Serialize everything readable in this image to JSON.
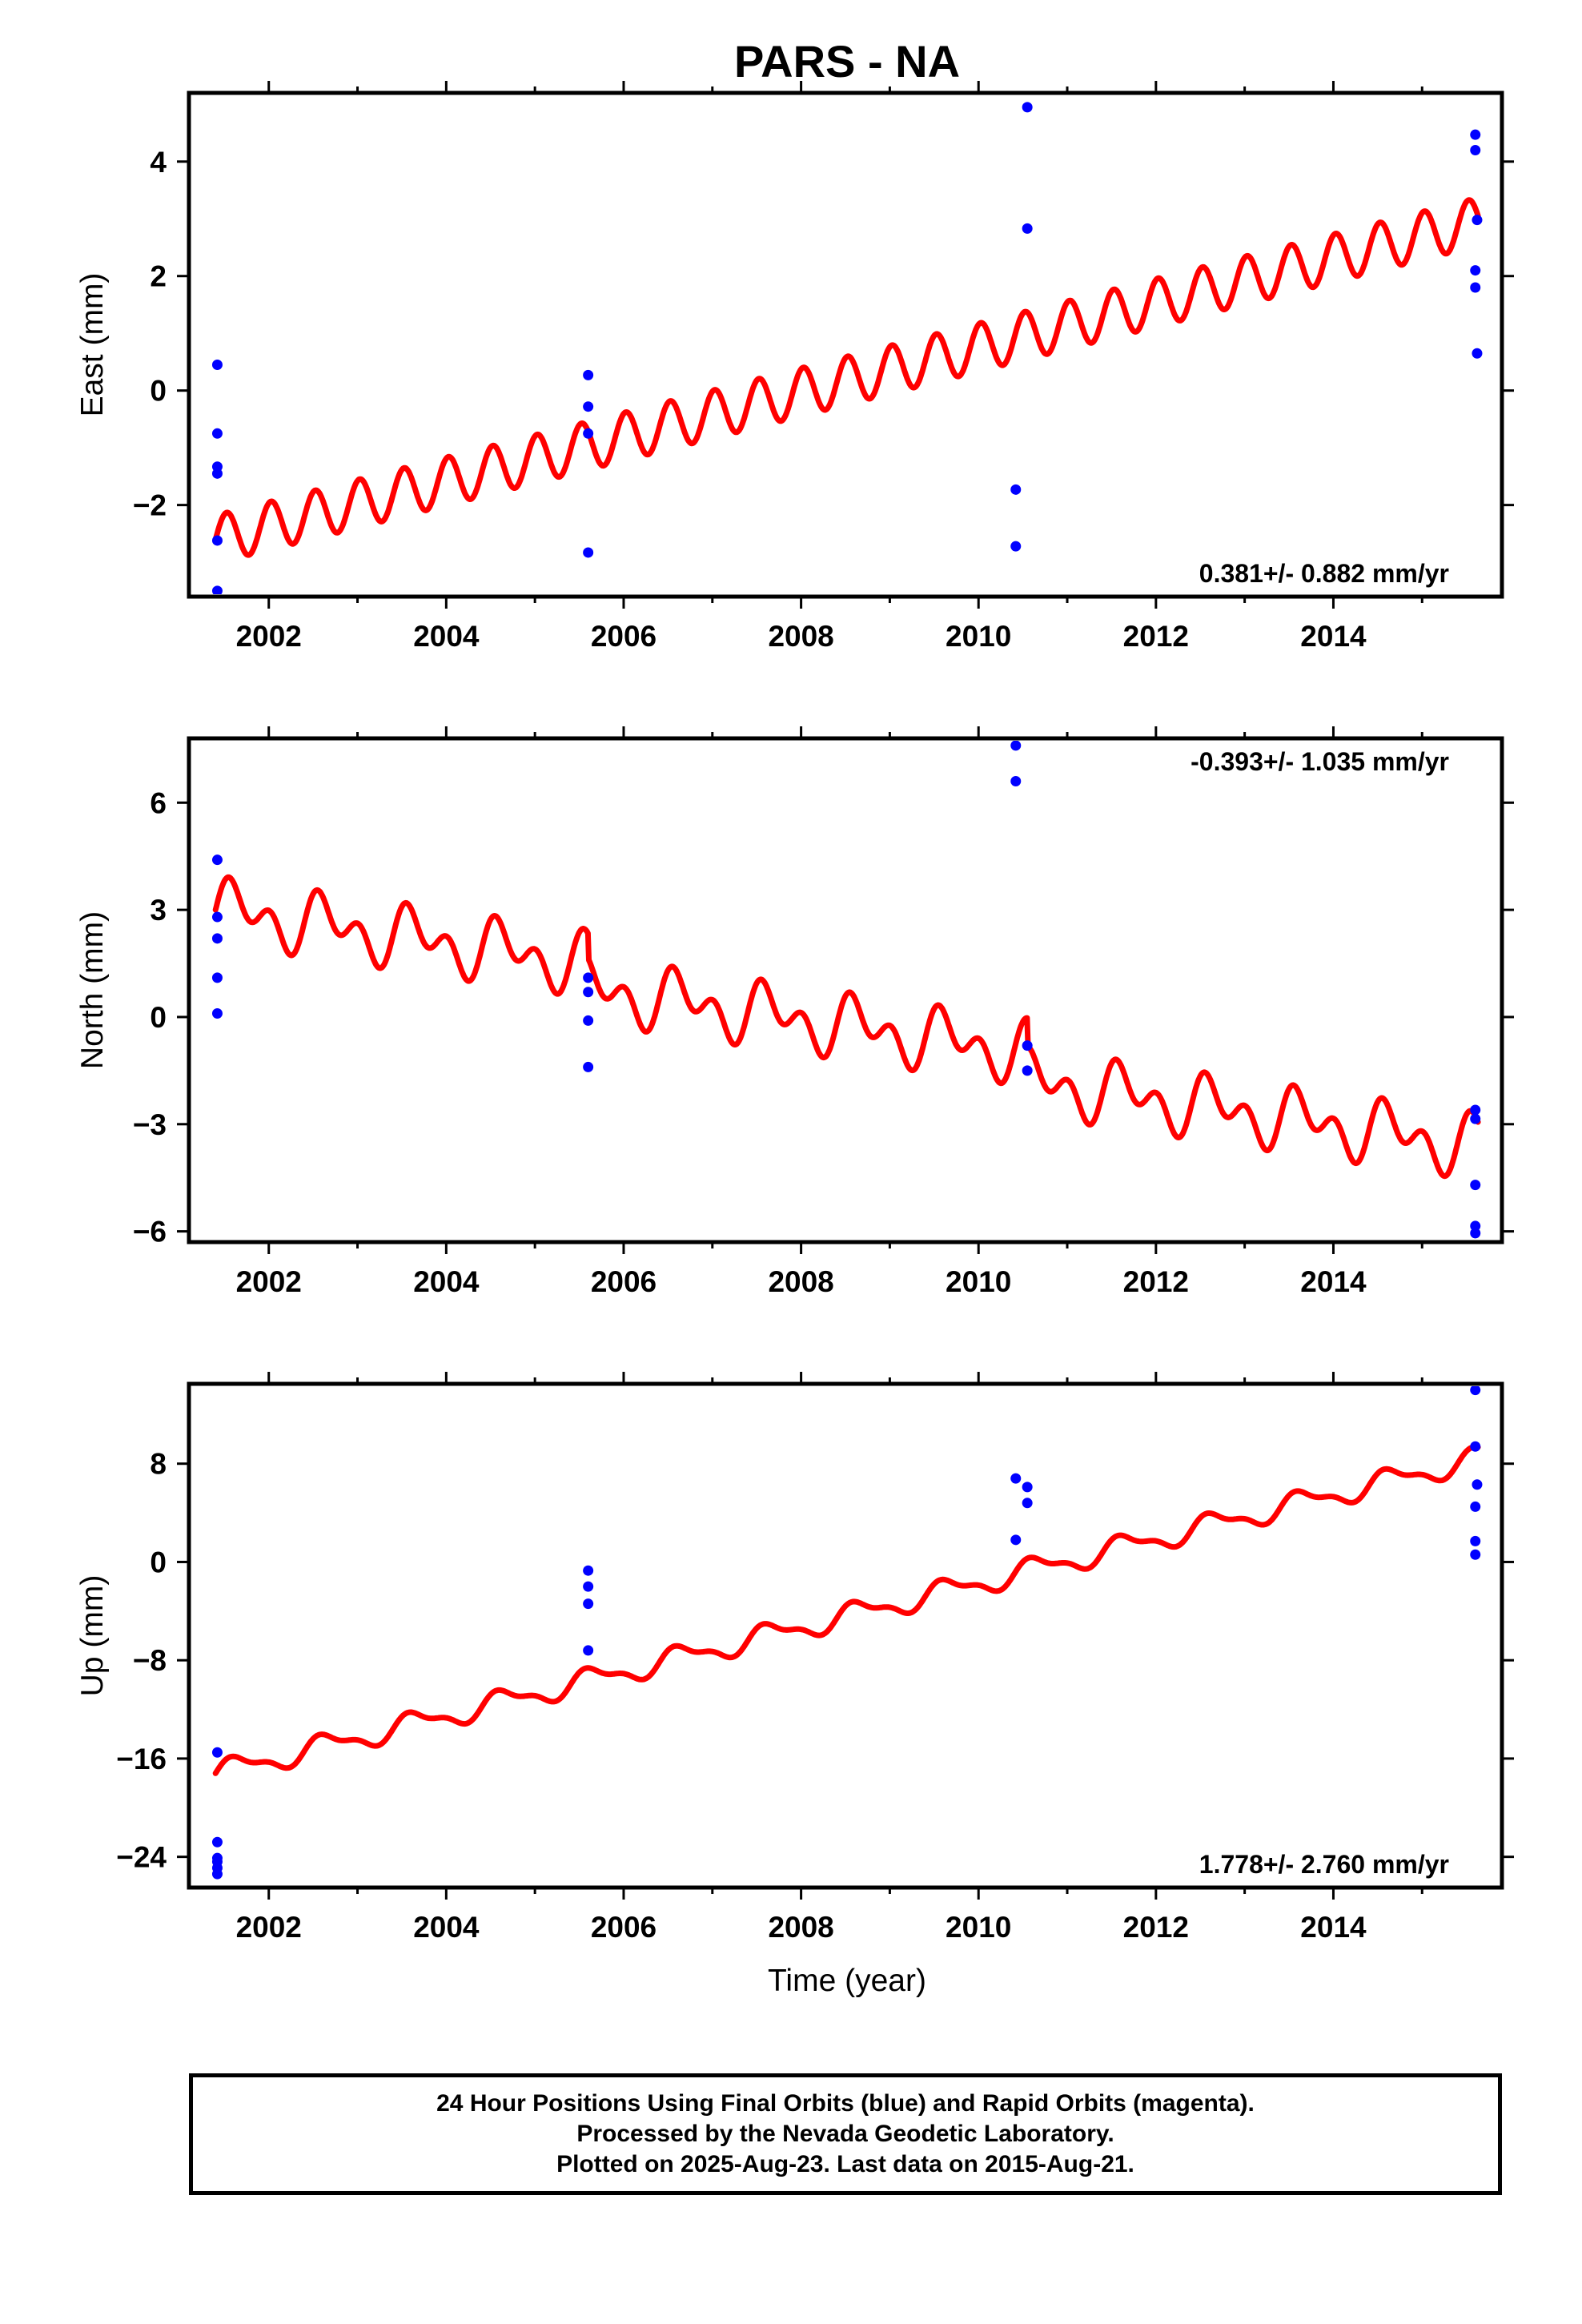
{
  "title": "PARS - NA",
  "xlabel": "Time (year)",
  "footer": {
    "line1": "24 Hour Positions Using Final Orbits (blue) and Rapid Orbits (magenta).",
    "line2": "Processed by the Nevada Geodetic Laboratory.",
    "line3": "Plotted on 2025-Aug-23. Last data on 2015-Aug-21."
  },
  "colors": {
    "model": "#ff0000",
    "final_orbits": "#0000ff",
    "frame": "#000000"
  },
  "chart_data": [
    {
      "type": "scatter",
      "ylabel": "East (mm)",
      "xlim": [
        2001.1,
        2015.9
      ],
      "ylim": [
        -3.6,
        5.2
      ],
      "yticks": [
        -2,
        0,
        2,
        4
      ],
      "xticks": [
        2002,
        2004,
        2006,
        2008,
        2010,
        2012,
        2014
      ],
      "rate_label": "0.381+/- 0.882 mm/yr",
      "rate_position": "bottom-right",
      "model": {
        "color": "#ff0000",
        "start": 2001.4,
        "end": 2015.63,
        "offset_at_2001_4": -2.6,
        "slope_mm_per_yr": 0.39,
        "annual_amp": 0.0,
        "semiannual_amp": 0.42,
        "breaks": []
      },
      "series": [
        {
          "color": "#0000ff",
          "points": [
            [
              2001.42,
              0.45
            ],
            [
              2001.42,
              -0.75
            ],
            [
              2001.42,
              -1.33
            ],
            [
              2001.42,
              -1.45
            ],
            [
              2001.42,
              -2.62
            ],
            [
              2001.42,
              -3.5
            ],
            [
              2005.6,
              0.27
            ],
            [
              2005.6,
              -0.28
            ],
            [
              2005.6,
              -0.75
            ],
            [
              2005.6,
              -2.83
            ],
            [
              2010.42,
              -1.73
            ],
            [
              2010.42,
              -2.72
            ],
            [
              2010.55,
              4.95
            ],
            [
              2010.55,
              2.83
            ],
            [
              2015.6,
              4.47
            ],
            [
              2015.6,
              4.2
            ],
            [
              2015.62,
              2.98
            ],
            [
              2015.6,
              2.1
            ],
            [
              2015.6,
              1.8
            ],
            [
              2015.62,
              0.65
            ]
          ]
        }
      ]
    },
    {
      "type": "scatter",
      "ylabel": "North (mm)",
      "xlim": [
        2001.1,
        2015.9
      ],
      "ylim": [
        -6.3,
        7.8
      ],
      "yticks": [
        -6,
        -3,
        0,
        3,
        6
      ],
      "xticks": [
        2002,
        2004,
        2006,
        2008,
        2010,
        2012,
        2014
      ],
      "rate_label": "-0.393+/- 1.035 mm/yr",
      "rate_position": "top-right",
      "model": {
        "color": "#ff0000",
        "start": 2001.4,
        "end": 2015.63,
        "offset_at_2001_4": 3.0,
        "slope_mm_per_yr": -0.36,
        "annual_amp": 0.55,
        "semiannual_amp": 0.55,
        "breaks": [
          [
            2005.6,
            -0.7
          ],
          [
            2010.55,
            -0.8
          ]
        ]
      },
      "series": [
        {
          "color": "#0000ff",
          "points": [
            [
              2001.42,
              4.4
            ],
            [
              2001.42,
              2.8
            ],
            [
              2001.42,
              2.2
            ],
            [
              2001.42,
              1.1
            ],
            [
              2001.42,
              0.1
            ],
            [
              2005.6,
              1.1
            ],
            [
              2005.6,
              0.7
            ],
            [
              2005.6,
              -0.1
            ],
            [
              2005.6,
              -1.4
            ],
            [
              2010.42,
              7.6
            ],
            [
              2010.42,
              6.6
            ],
            [
              2010.55,
              -0.8
            ],
            [
              2010.55,
              -1.5
            ],
            [
              2015.6,
              -2.6
            ],
            [
              2015.6,
              -2.85
            ],
            [
              2015.6,
              -4.7
            ],
            [
              2015.6,
              -5.85
            ],
            [
              2015.6,
              -6.05
            ]
          ]
        }
      ]
    },
    {
      "type": "scatter",
      "ylabel": "Up (mm)",
      "xlim": [
        2001.1,
        2015.9
      ],
      "ylim": [
        -26.5,
        14.5
      ],
      "yticks": [
        -24,
        -16,
        -8,
        0,
        8
      ],
      "ytick_labels": [
        "−24",
        "−16",
        "−8",
        "0",
        "8"
      ],
      "xticks": [
        2002,
        2004,
        2006,
        2008,
        2010,
        2012,
        2014
      ],
      "rate_label": "1.778+/- 2.760 mm/yr",
      "rate_position": "bottom-right",
      "model": {
        "color": "#ff0000",
        "start": 2001.4,
        "end": 2015.63,
        "offset_at_2001_4": -17.2,
        "slope_mm_per_yr": 1.8,
        "annual_amp": 0.85,
        "semiannual_amp": 0.35,
        "breaks": []
      },
      "series": [
        {
          "color": "#0000ff",
          "points": [
            [
              2001.42,
              -15.5
            ],
            [
              2001.42,
              -22.8
            ],
            [
              2001.42,
              -24.1
            ],
            [
              2001.42,
              -24.4
            ],
            [
              2001.42,
              -24.9
            ],
            [
              2001.42,
              -25.4
            ],
            [
              2005.6,
              -0.7
            ],
            [
              2005.6,
              -2.0
            ],
            [
              2005.6,
              -3.4
            ],
            [
              2005.6,
              -7.2
            ],
            [
              2010.42,
              6.8
            ],
            [
              2010.42,
              1.8
            ],
            [
              2010.55,
              6.1
            ],
            [
              2010.55,
              4.8
            ],
            [
              2015.6,
              14.0
            ],
            [
              2015.6,
              9.4
            ],
            [
              2015.62,
              6.3
            ],
            [
              2015.6,
              4.5
            ],
            [
              2015.6,
              1.7
            ],
            [
              2015.6,
              0.6
            ]
          ]
        }
      ]
    }
  ]
}
